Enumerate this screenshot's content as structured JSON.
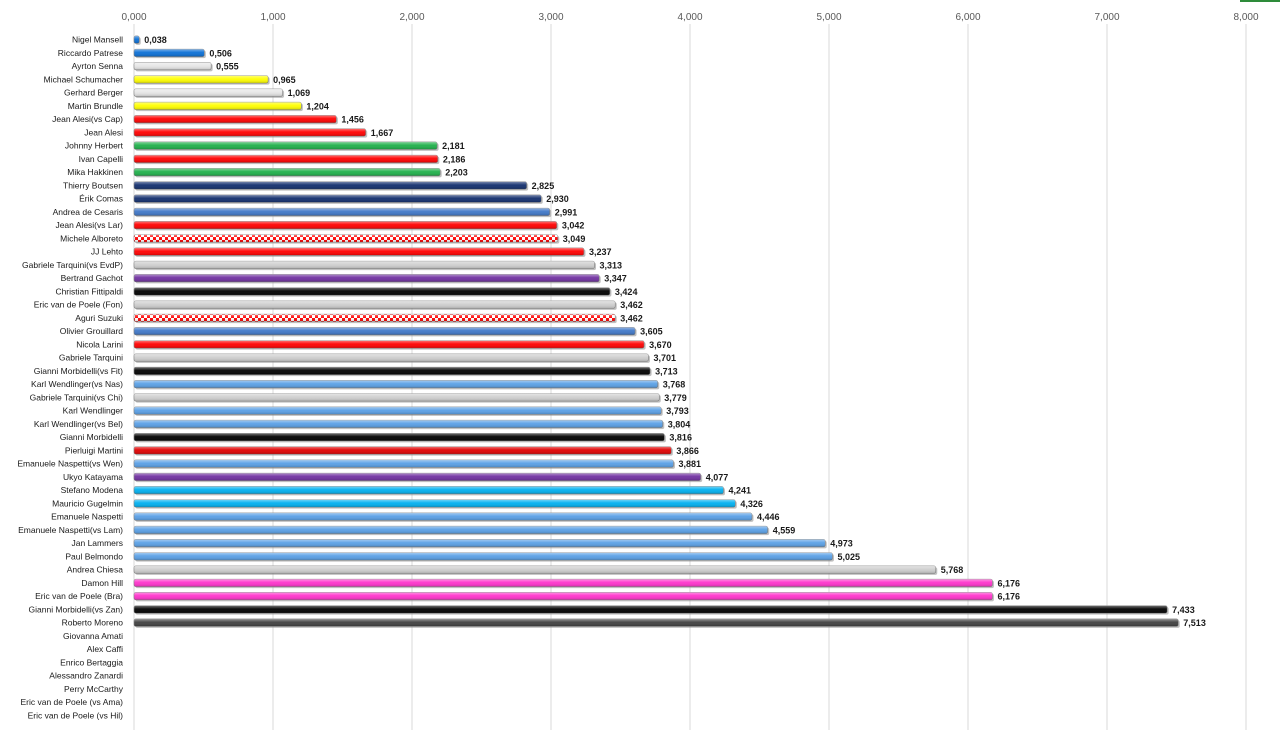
{
  "chart_data": {
    "type": "bar",
    "orientation": "horizontal",
    "title": "",
    "xlabel": "",
    "ylabel": "",
    "xlim": [
      0,
      8
    ],
    "grid": true,
    "legend": "none",
    "ticks": [
      "0,000",
      "1,000",
      "2,000",
      "3,000",
      "4,000",
      "5,000",
      "6,000",
      "7,000",
      "8,000"
    ],
    "categories": [
      "Nigel Mansell",
      "Riccardo Patrese",
      "Ayrton Senna",
      "Michael Schumacher",
      "Gerhard Berger",
      "Martin Brundle",
      "Jean Alesi(vs Cap)",
      "Jean Alesi",
      "Johnny Herbert",
      "Ivan Capelli",
      "Mika Hakkinen",
      "Thierry Boutsen",
      "Érik Comas",
      "Andrea de Cesaris",
      "Jean Alesi(vs Lar)",
      "Michele Alboreto",
      "JJ Lehto",
      "Gabriele Tarquini(vs EvdP)",
      "Bertrand Gachot",
      "Christian Fittipaldi",
      "Eric van de Poele (Fon)",
      "Aguri Suzuki",
      "Olivier Grouillard",
      "Nicola Larini",
      "Gabriele Tarquini",
      "Gianni Morbidelli(vs Fit)",
      "Karl Wendlinger(vs Nas)",
      "Gabriele Tarquini(vs Chi)",
      "Karl Wendlinger",
      "Karl Wendlinger(vs Bel)",
      "Gianni Morbidelli",
      "Pierluigi Martini",
      "Emanuele Naspetti(vs Wen)",
      "Ukyo Katayama",
      "Stefano Modena",
      "Mauricio Gugelmin",
      "Emanuele Naspetti",
      "Emanuele Naspetti(vs Lam)",
      "Jan Lammers",
      "Paul Belmondo",
      "Andrea Chiesa",
      "Damon Hill",
      "Eric van de Poele (Bra)",
      "Gianni Morbidelli(vs Zan)",
      "Roberto Moreno",
      "Giovanna Amati",
      "Alex Caffi",
      "Enrico Bertaggia",
      "Alessandro Zanardi",
      "Perry McCarthy",
      "Eric van de Poele (vs Ama)",
      "Eric van de Poele (vs Hil)"
    ],
    "values": [
      0.038,
      0.506,
      0.555,
      0.965,
      1.069,
      1.204,
      1.456,
      1.667,
      2.181,
      2.186,
      2.203,
      2.825,
      2.93,
      2.991,
      3.042,
      3.049,
      3.237,
      3.313,
      3.347,
      3.424,
      3.462,
      3.462,
      3.605,
      3.67,
      3.701,
      3.713,
      3.768,
      3.779,
      3.793,
      3.804,
      3.816,
      3.866,
      3.881,
      4.077,
      4.241,
      4.326,
      4.446,
      4.559,
      4.973,
      5.025,
      5.768,
      6.176,
      6.176,
      7.433,
      7.513,
      null,
      null,
      null,
      null,
      null,
      null,
      null
    ],
    "value_labels": [
      "0,038",
      "0,506",
      "0,555",
      "0,965",
      "1,069",
      "1,204",
      "1,456",
      "1,667",
      "2,181",
      "2,186",
      "2,203",
      "2,825",
      "2,930",
      "2,991",
      "3,042",
      "3,049",
      "3,237",
      "3,313",
      "3,347",
      "3,424",
      "3,462",
      "3,462",
      "3,605",
      "3,670",
      "3,701",
      "3,713",
      "3,768",
      "3,779",
      "3,793",
      "3,804",
      "3,816",
      "3,866",
      "3,881",
      "4,077",
      "4,241",
      "4,326",
      "4,446",
      "4,559",
      "4,973",
      "5,025",
      "5,768",
      "6,176",
      "6,176",
      "7,433",
      "7,513",
      "",
      "",
      "",
      "",
      "",
      "",
      ""
    ],
    "colors": [
      "#0a6fd6",
      "#0a6fd6",
      "#e6e6e6",
      "#ffff00",
      "#e6e6e6",
      "#ffff00",
      "#ff0000",
      "#ff0000",
      "#1fb04a",
      "#ff0000",
      "#1fb04a",
      "#132f6e",
      "#132f6e",
      "#3f77c8",
      "#ff0000",
      "checker",
      "#ff0000",
      "#cfcfcf",
      "#7030a0",
      "#000000",
      "#cfcfcf",
      "checker",
      "#3f77c8",
      "#ff0000",
      "#cfcfcf",
      "#000000",
      "#5aa0e6",
      "#cfcfcf",
      "#5aa0e6",
      "#5aa0e6",
      "#000000",
      "#e00000",
      "#5aa0e6",
      "#7030a0",
      "#00b0f0",
      "#00b0f0",
      "#5aa0e6",
      "#5aa0e6",
      "#5aa0e6",
      "#5aa0e6",
      "#cfcfcf",
      "#ff33cc",
      "#ff33cc",
      "#000000",
      "#404040",
      "",
      "",
      "",
      "",
      "",
      "",
      ""
    ]
  }
}
